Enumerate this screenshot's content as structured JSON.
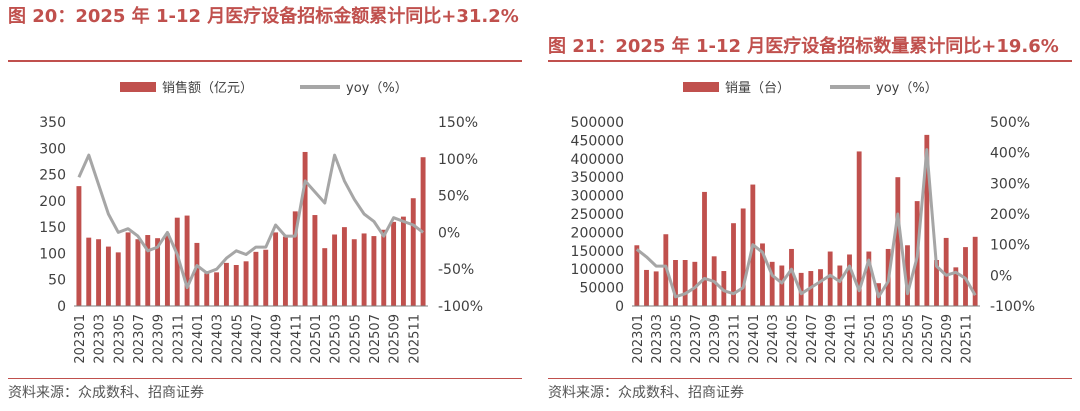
{
  "left": {
    "title": "图 20：2025 年 1-12 月医疗设备招标金额累计同比+31.2%",
    "source": "资料来源：众成数科、招商证券",
    "chart_data": {
      "type": "bar",
      "title": "图 20：2025 年 1-12 月医疗设备招标金额累计同比+31.2%",
      "x": [
        "202301",
        "202302",
        "202303",
        "202304",
        "202305",
        "202306",
        "202307",
        "202308",
        "202309",
        "202310",
        "202311",
        "202312",
        "202401",
        "202402",
        "202403",
        "202404",
        "202405",
        "202406",
        "202407",
        "202408",
        "202409",
        "202410",
        "202411",
        "202412",
        "202501",
        "202502",
        "202503",
        "202504",
        "202505",
        "202506",
        "202507",
        "202508",
        "202509",
        "202510",
        "202511",
        "202512"
      ],
      "x_tick_labels": [
        "202301",
        "202303",
        "202305",
        "202307",
        "202309",
        "202311",
        "202401",
        "202403",
        "202405",
        "202407",
        "202409",
        "202411",
        "202501",
        "202503",
        "202505",
        "202507",
        "202509",
        "202511"
      ],
      "series": [
        {
          "name": "销售额（亿元）",
          "type": "bar",
          "axis": "left",
          "color": "#c0504d",
          "values": [
            228,
            130,
            127,
            113,
            102,
            140,
            127,
            135,
            129,
            138,
            168,
            172,
            120,
            62,
            64,
            82,
            78,
            85,
            103,
            107,
            140,
            132,
            180,
            293,
            173,
            110,
            136,
            150,
            127,
            138,
            133,
            145,
            160,
            170,
            205,
            283
          ]
        },
        {
          "name": "yoy（%）",
          "type": "line",
          "axis": "right",
          "color": "#a6a6a6",
          "values": [
            75,
            105,
            65,
            25,
            0,
            5,
            -5,
            -25,
            -20,
            0,
            -30,
            -75,
            -45,
            -55,
            -50,
            -35,
            -25,
            -30,
            -20,
            -20,
            10,
            -5,
            -5,
            70,
            55,
            40,
            105,
            70,
            45,
            25,
            15,
            -5,
            20,
            15,
            10,
            0
          ]
        }
      ],
      "ylim_left": [
        0,
        350
      ],
      "yticks_left": [
        0,
        50,
        100,
        150,
        200,
        250,
        300,
        350
      ],
      "ylim_right": [
        -100,
        150
      ],
      "yticks_right": [
        "-100%",
        "-50%",
        "0%",
        "50%",
        "100%",
        "150%"
      ],
      "legend": "top"
    }
  },
  "right": {
    "title": "图 21：2025 年 1-12 月医疗设备招标数量累计同比+19.6%",
    "source": "资料来源：众成数科、招商证券",
    "chart_data": {
      "type": "bar",
      "title": "图 21：2025 年 1-12 月医疗设备招标数量累计同比+19.6%",
      "x": [
        "202301",
        "202302",
        "202303",
        "202304",
        "202305",
        "202306",
        "202307",
        "202308",
        "202309",
        "202310",
        "202311",
        "202312",
        "202401",
        "202402",
        "202403",
        "202404",
        "202405",
        "202406",
        "202407",
        "202408",
        "202409",
        "202410",
        "202411",
        "202412",
        "202501",
        "202502",
        "202503",
        "202504",
        "202505",
        "202506",
        "202507",
        "202508",
        "202509",
        "202510",
        "202511",
        "202512"
      ],
      "x_tick_labels": [
        "202301",
        "202303",
        "202305",
        "202307",
        "202309",
        "202311",
        "202401",
        "202403",
        "202405",
        "202407",
        "202409",
        "202411",
        "202501",
        "202503",
        "202505",
        "202507",
        "202509",
        "202511"
      ],
      "series": [
        {
          "name": "销量（台）",
          "type": "bar",
          "axis": "left",
          "color": "#c0504d",
          "values": [
            165000,
            98000,
            94000,
            195000,
            125000,
            125000,
            120000,
            310000,
            135000,
            95000,
            225000,
            265000,
            330000,
            170000,
            120000,
            110000,
            155000,
            90000,
            95000,
            100000,
            148000,
            110000,
            140000,
            420000,
            148000,
            62000,
            155000,
            350000,
            165000,
            285000,
            465000,
            125000,
            185000,
            105000,
            160000,
            188000
          ]
        },
        {
          "name": "yoy（%）",
          "type": "line",
          "axis": "right",
          "color": "#a6a6a6",
          "values": [
            85,
            60,
            30,
            30,
            -70,
            -60,
            -40,
            -10,
            -20,
            -50,
            -60,
            -40,
            100,
            75,
            0,
            -25,
            20,
            -60,
            -40,
            -20,
            0,
            -20,
            30,
            -50,
            50,
            -70,
            -20,
            200,
            -60,
            60,
            410,
            30,
            0,
            10,
            -10,
            -65
          ]
        }
      ],
      "ylim_left": [
        0,
        500000
      ],
      "yticks_left": [
        0,
        50000,
        100000,
        150000,
        200000,
        250000,
        300000,
        350000,
        400000,
        450000,
        500000
      ],
      "ylim_right": [
        -100,
        500
      ],
      "yticks_right": [
        "-100%",
        "0%",
        "100%",
        "200%",
        "300%",
        "400%",
        "500%"
      ],
      "legend": "top"
    }
  }
}
